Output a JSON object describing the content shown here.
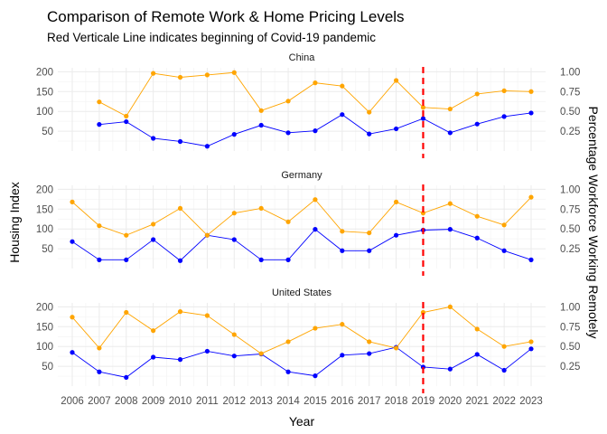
{
  "chart_data": {
    "type": "line",
    "title": "Comparison of Remote Work & Home Pricing Levels",
    "subtitle": "Red Verticale Line indicates beginning of Covid-19 pandemic",
    "xlabel": "Year",
    "ylabel": "Housing Index",
    "y2label": "Percentage Workforce Working Remotely",
    "x": [
      2006,
      2007,
      2008,
      2009,
      2010,
      2011,
      2012,
      2013,
      2014,
      2015,
      2016,
      2017,
      2018,
      2019,
      2020,
      2021,
      2022,
      2023
    ],
    "x_ticks": [
      "2006",
      "2007",
      "2008",
      "2009",
      "2010",
      "2011",
      "2012",
      "2013",
      "2014",
      "2015",
      "2016",
      "2017",
      "2018",
      "2019",
      "2020",
      "2021",
      "2022",
      "2023"
    ],
    "ylim": [
      0,
      210
    ],
    "y_ticks": [
      "50",
      "100",
      "150",
      "200"
    ],
    "y2lim": [
      0,
      1.05
    ],
    "y2_ticks": [
      "0.25",
      "0.50",
      "0.75",
      "1.00"
    ],
    "vline_x": 2019,
    "grid": true,
    "legend": "none",
    "colors": {
      "housing": "#0000ff",
      "remote": "#ffa500",
      "vline": "#ff0000"
    },
    "panels": [
      {
        "name": "China",
        "series": [
          {
            "axis": "left",
            "color": "#0000ff",
            "x": [
              2007,
              2008,
              2009,
              2010,
              2011,
              2012,
              2013,
              2014,
              2015,
              2016,
              2017,
              2018,
              2019,
              2020,
              2021,
              2022,
              2023
            ],
            "values": [
              67,
              74,
              32,
              24,
              12,
              42,
              65,
              46,
              51,
              92,
              43,
              56,
              82,
              46,
              68,
              87,
              96
            ]
          },
          {
            "axis": "right",
            "color": "#ffa500",
            "x": [
              2007,
              2008,
              2009,
              2010,
              2011,
              2012,
              2013,
              2014,
              2015,
              2016,
              2017,
              2018,
              2019,
              2020,
              2021,
              2022,
              2023
            ],
            "values": [
              0.62,
              0.44,
              0.98,
              0.93,
              0.96,
              0.99,
              0.51,
              0.63,
              0.86,
              0.82,
              0.49,
              0.89,
              0.55,
              0.53,
              0.72,
              0.76,
              0.75
            ]
          }
        ]
      },
      {
        "name": "Germany",
        "series": [
          {
            "axis": "left",
            "color": "#0000ff",
            "x": [
              2006,
              2007,
              2008,
              2009,
              2010,
              2011,
              2012,
              2013,
              2014,
              2015,
              2016,
              2017,
              2018,
              2019,
              2020,
              2021,
              2022,
              2023
            ],
            "values": [
              68,
              22,
              22,
              73,
              20,
              84,
              73,
              22,
              22,
              99,
              45,
              45,
              84,
              97,
              99,
              77,
              45,
              22
            ]
          },
          {
            "axis": "right",
            "color": "#ffa500",
            "x": [
              2006,
              2007,
              2008,
              2009,
              2010,
              2011,
              2012,
              2013,
              2014,
              2015,
              2016,
              2017,
              2018,
              2019,
              2020,
              2021,
              2022,
              2023
            ],
            "values": [
              0.84,
              0.54,
              0.42,
              0.56,
              0.76,
              0.42,
              0.7,
              0.76,
              0.59,
              0.87,
              0.47,
              0.45,
              0.84,
              0.7,
              0.82,
              0.66,
              0.55,
              0.9
            ]
          }
        ]
      },
      {
        "name": "United States",
        "series": [
          {
            "axis": "left",
            "color": "#0000ff",
            "x": [
              2006,
              2007,
              2008,
              2009,
              2010,
              2011,
              2012,
              2013,
              2014,
              2015,
              2016,
              2017,
              2018,
              2019,
              2020,
              2021,
              2022,
              2023
            ],
            "values": [
              85,
              36,
              22,
              73,
              67,
              88,
              76,
              81,
              36,
              26,
              78,
              82,
              98,
              48,
              43,
              80,
              40,
              94
            ]
          },
          {
            "axis": "right",
            "color": "#ffa500",
            "x": [
              2006,
              2007,
              2008,
              2009,
              2010,
              2011,
              2012,
              2013,
              2014,
              2015,
              2016,
              2017,
              2018,
              2019,
              2020,
              2021,
              2022,
              2023
            ],
            "values": [
              0.87,
              0.48,
              0.93,
              0.7,
              0.94,
              0.89,
              0.65,
              0.41,
              0.56,
              0.73,
              0.78,
              0.56,
              0.48,
              0.93,
              1.0,
              0.72,
              0.5,
              0.56
            ]
          }
        ]
      }
    ]
  }
}
